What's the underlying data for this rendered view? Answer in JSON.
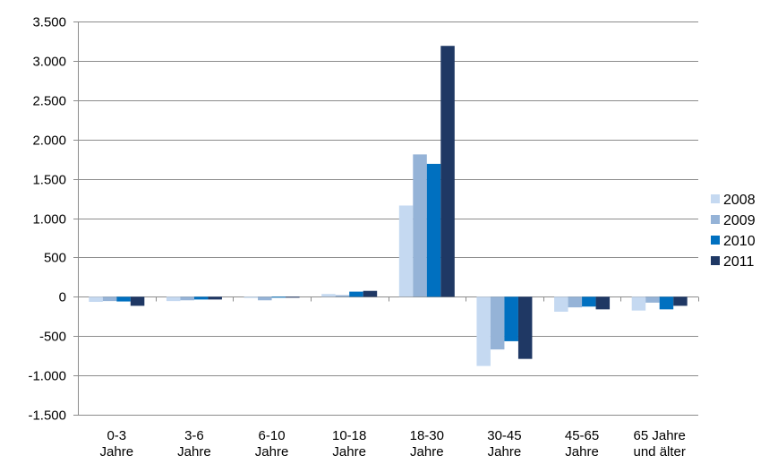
{
  "chart_data": {
    "type": "bar",
    "categories": [
      [
        "0-3",
        "Jahre"
      ],
      [
        "3-6",
        "Jahre"
      ],
      [
        "6-10",
        "Jahre"
      ],
      [
        "10-18",
        "Jahre"
      ],
      [
        "18-30",
        "Jahre"
      ],
      [
        "30-45",
        "Jahre"
      ],
      [
        "45-65",
        "Jahre"
      ],
      [
        "65 Jahre",
        "und älter"
      ]
    ],
    "series": [
      {
        "name": "2008",
        "color": "#c5d9f1",
        "values": [
          -65,
          -55,
          -15,
          35,
          1160,
          -880,
          -190,
          -175
        ]
      },
      {
        "name": "2009",
        "color": "#95b3d7",
        "values": [
          -55,
          -45,
          -45,
          20,
          1810,
          -670,
          -135,
          -75
        ]
      },
      {
        "name": "2010",
        "color": "#0070c0",
        "values": [
          -60,
          -35,
          -5,
          65,
          1690,
          -565,
          -125,
          -160
        ]
      },
      {
        "name": "2011",
        "color": "#1f3864",
        "values": [
          -115,
          -35,
          -5,
          75,
          3190,
          -790,
          -160,
          -115
        ]
      }
    ],
    "ylim": [
      -1500,
      3500
    ],
    "yticks": [
      -1500,
      -1000,
      -500,
      0,
      500,
      1000,
      1500,
      2000,
      2500,
      3000,
      3500
    ],
    "ytick_labels": [
      "-1.500",
      "-1.000",
      "-500",
      "0",
      "500",
      "1.000",
      "1.500",
      "2.000",
      "2.500",
      "3.000",
      "3.500"
    ],
    "title": "",
    "xlabel": "",
    "ylabel": "",
    "legend_position": "right",
    "grid": "horizontal"
  }
}
